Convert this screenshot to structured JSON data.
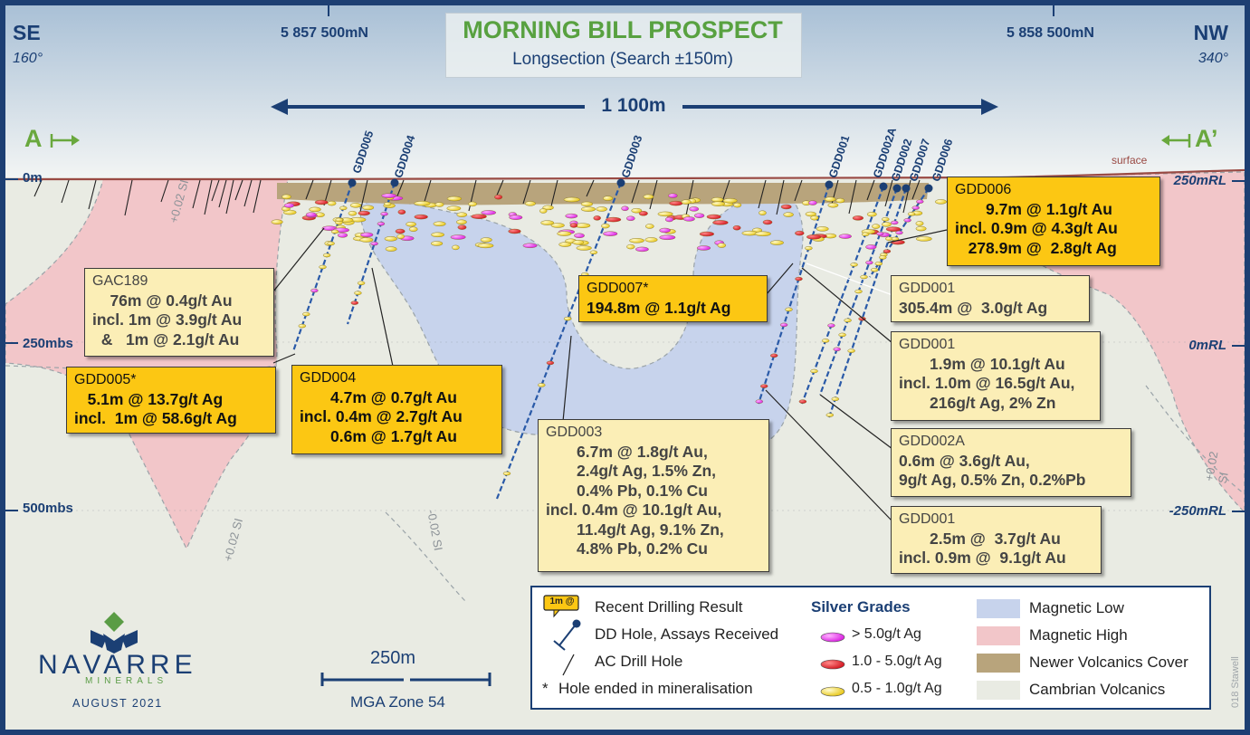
{
  "header": {
    "left_dir": "SE",
    "left_bearing": "160°",
    "right_dir": "NW",
    "right_bearing": "340°",
    "north_left": "5 857 500mN",
    "north_right": "5 858 500mN",
    "title": "MORNING BILL PROSPECT",
    "subtitle": "Longsection (Search ±150m)",
    "distance": "1 100m",
    "section_left": "A",
    "section_right": "A’"
  },
  "axes": {
    "left": [
      "0m",
      "250mbs",
      "500mbs"
    ],
    "right": [
      "250mRL",
      "0mRL",
      "-250mRL"
    ],
    "surface": "surface"
  },
  "contours": [
    "+0.02 SI",
    "+0.02 SI",
    "-0.02 SI",
    "+0.02 SI"
  ],
  "holes": [
    "GDD005",
    "GDD004",
    "GDD003",
    "GDD001",
    "GDD002A",
    "GDD002",
    "GDD007",
    "GDD006"
  ],
  "callouts": [
    {
      "id": "gac189",
      "style": "cream",
      "hole": "GAC189",
      "lines": [
        "    76m @ 0.4g/t Au",
        "incl. 1m @ 3.9g/t Au",
        "  &   1m @ 2.1g/t Au"
      ]
    },
    {
      "id": "gdd005",
      "style": "gold",
      "hole": "GDD005*",
      "lines": [
        "   5.1m @ 13.7g/t Ag",
        "incl.  1m @ 58.6g/t Ag"
      ]
    },
    {
      "id": "gdd004",
      "style": "gold",
      "hole": "GDD004",
      "lines": [
        "       4.7m @ 0.7g/t Au",
        "incl. 0.4m @ 2.7g/t Au",
        "       0.6m @ 1.7g/t Au"
      ]
    },
    {
      "id": "gdd007",
      "style": "gold",
      "hole": "GDD007*",
      "lines": [
        "194.8m @ 1.1g/t Ag"
      ]
    },
    {
      "id": "gdd003",
      "style": "cream",
      "hole": "GDD003",
      "lines": [
        "       6.7m @ 1.8g/t Au,",
        "       2.4g/t Ag, 1.5% Zn,",
        "       0.4% Pb, 0.1% Cu",
        "incl. 0.4m @ 10.1g/t Au,",
        "       11.4g/t Ag, 9.1% Zn,",
        "       4.8% Pb, 0.2% Cu"
      ]
    },
    {
      "id": "gdd006",
      "style": "gold",
      "hole": "GDD006",
      "lines": [
        "       9.7m @ 1.1g/t Au",
        "incl. 0.9m @ 4.3g/t Au",
        "   278.9m @  2.8g/t Ag"
      ]
    },
    {
      "id": "gdd001a",
      "style": "cream",
      "hole": "GDD001",
      "lines": [
        "305.4m @  3.0g/t Ag"
      ]
    },
    {
      "id": "gdd001b",
      "style": "cream",
      "hole": "GDD001",
      "lines": [
        "       1.9m @ 10.1g/t Au",
        "incl. 1.0m @ 16.5g/t Au,",
        "       216g/t Ag, 2% Zn"
      ]
    },
    {
      "id": "gdd002a",
      "style": "cream",
      "hole": "GDD002A",
      "lines": [
        "0.6m @ 3.6g/t Au,",
        "9g/t Ag, 0.5% Zn, 0.2%Pb"
      ]
    },
    {
      "id": "gdd001c",
      "style": "cream",
      "hole": "GDD001",
      "lines": [
        "       2.5m @  3.7g/t Au",
        "incl. 0.9m @  9.1g/t Au"
      ]
    }
  ],
  "legend": {
    "col1": [
      "Recent Drilling Result",
      "DD Hole, Assays Received",
      "AC Drill Hole",
      "Hole ended in mineralisation"
    ],
    "chip": "1m @",
    "star": "*",
    "col2_title": "Silver Grades",
    "col2": [
      "> 5.0g/t Ag",
      "1.0 - 5.0g/t Ag",
      "0.5 - 1.0g/t Ag"
    ],
    "col3": [
      "Magnetic Low",
      "Magnetic High",
      "Newer Volcanics Cover",
      "Cambrian Volcanics"
    ],
    "colors": {
      "mag_low": "#c7d3ec",
      "mag_high": "#f2c6c9",
      "cover": "#b8a47c",
      "cambrian": "#e9ebe3",
      "gt5": "#e01ee6",
      "g1to5": "#e01a24",
      "g05to1": "#f1d416"
    }
  },
  "scale": {
    "value": "250m",
    "zone": "MGA Zone 54"
  },
  "logo": {
    "name": "NAVARRE",
    "sub": "MINERALS",
    "date": "AUGUST 2021"
  },
  "ref": "018 Stawell"
}
